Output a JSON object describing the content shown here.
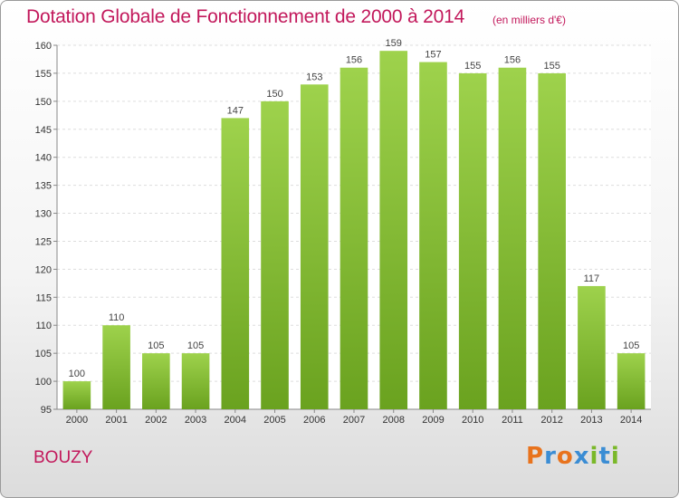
{
  "title": "Dotation Globale de Fonctionnement de 2000 à 2014",
  "unit_note": "(en milliers d'€)",
  "place": "BOUZY",
  "logo": {
    "text": "Proxiti",
    "colors": [
      "#e8731d",
      "#3b8dd4",
      "#e8731d",
      "#3b8dd4",
      "#7ab829",
      "#3b8dd4",
      "#7ab829"
    ]
  },
  "colors": {
    "text_accent": "#c2185b",
    "bar_light": "#9ed24c",
    "bar_dark": "#6aa21f"
  },
  "chart_data": {
    "type": "bar",
    "title": "Dotation Globale de Fonctionnement de 2000 à 2014",
    "categories": [
      "2000",
      "2001",
      "2002",
      "2003",
      "2004",
      "2005",
      "2006",
      "2007",
      "2008",
      "2009",
      "2010",
      "2011",
      "2012",
      "2013",
      "2014"
    ],
    "values": [
      100,
      110,
      105,
      105,
      147,
      150,
      153,
      156,
      159,
      157,
      155,
      156,
      155,
      117,
      105
    ],
    "ylim": [
      95,
      160
    ],
    "yticks": [
      95,
      100,
      105,
      110,
      115,
      120,
      125,
      130,
      135,
      140,
      145,
      150,
      155,
      160
    ],
    "grid": true,
    "xlabel": "",
    "ylabel": ""
  }
}
